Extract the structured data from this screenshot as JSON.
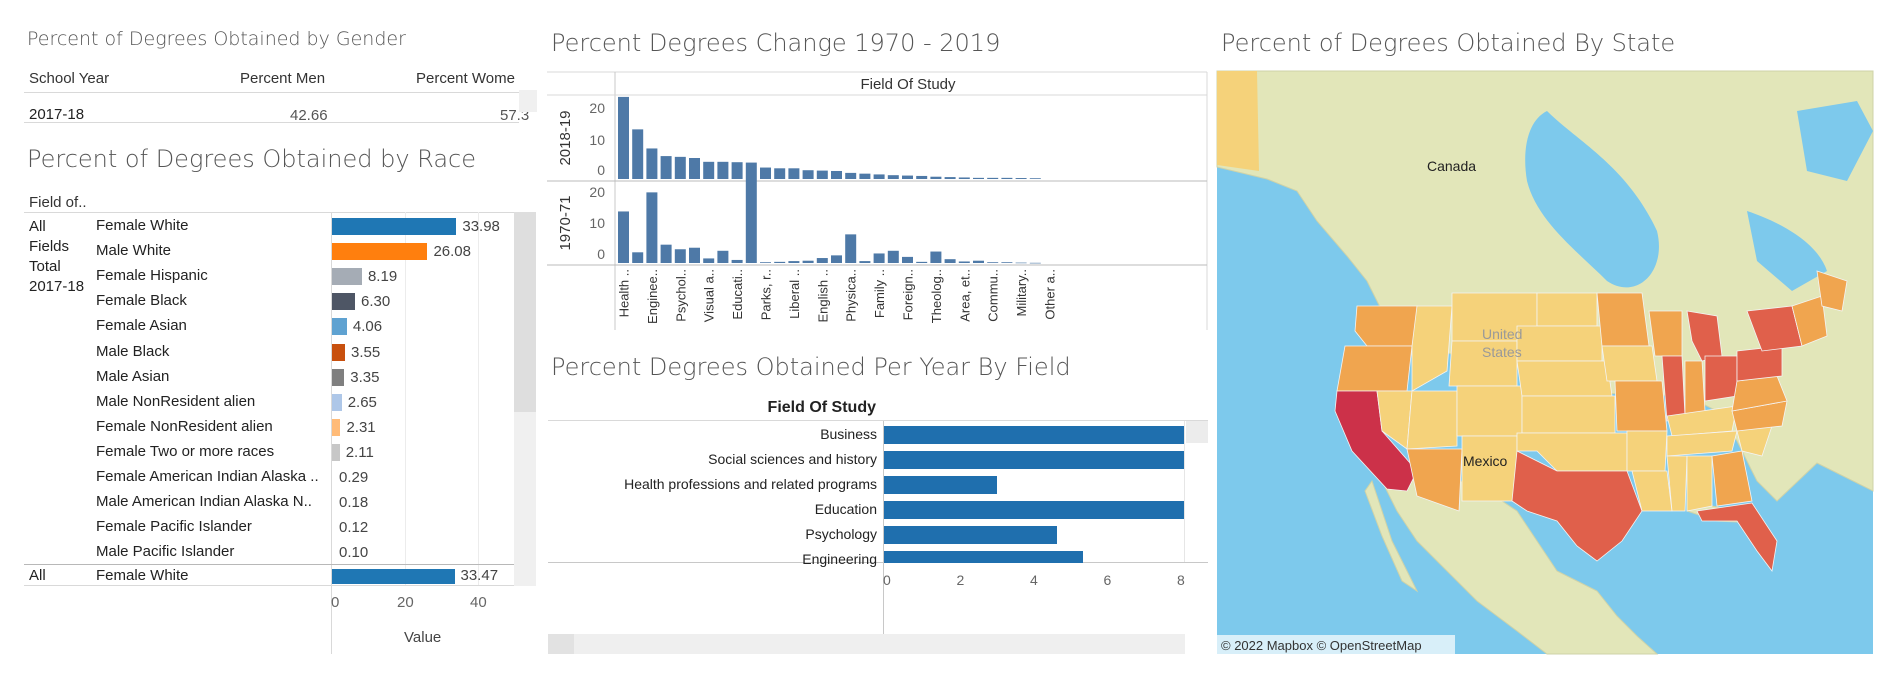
{
  "gender": {
    "title": "Percent of Degrees Obtained by Gender",
    "col_year": "School Year",
    "col_men": "Percent Men",
    "col_women": "Percent Wome",
    "row": {
      "year": "2017-18",
      "men": "42.66",
      "women": "57.3"
    }
  },
  "race": {
    "title": "Percent of Degrees Obtained by Race",
    "field_header": "Field of..",
    "group_label": [
      "All",
      "Fields",
      "Total",
      "2017-18"
    ],
    "next_group": "All",
    "axis_ticks": [
      "0",
      "20",
      "40"
    ],
    "axis_label": "Value",
    "chart_data": {
      "type": "bar",
      "orientation": "horizontal",
      "categories": [
        "Female White",
        "Male White",
        "Female Hispanic",
        "Female Black",
        "Female Asian",
        "Male Black",
        "Male Asian",
        "Male NonResident alien",
        "Female NonResident alien",
        "Female Two or more races",
        "Female American Indian Alaska ..",
        "Male American Indian Alaska N..",
        "Female Pacific Islander",
        "Male Pacific Islander"
      ],
      "values": [
        33.98,
        26.08,
        8.19,
        6.3,
        4.06,
        3.55,
        3.35,
        2.65,
        2.31,
        2.11,
        0.29,
        0.18,
        0.12,
        0.1
      ],
      "labels": [
        "33.98",
        "26.08",
        "8.19",
        "6.30",
        "4.06",
        "3.55",
        "3.35",
        "2.65",
        "2.31",
        "2.11",
        "0.29",
        "0.18",
        "0.12",
        "0.10"
      ],
      "colors": [
        "#1f77b4",
        "#ff7f0e",
        "#a5acb5",
        "#4e5665",
        "#5fa2d1",
        "#c8500e",
        "#7f7f7f",
        "#aec7e8",
        "#ffbb78",
        "#c7c7c7",
        "#ffffff",
        "#ffffff",
        "#ffffff",
        "#ffffff"
      ],
      "xlim": [
        0,
        50
      ],
      "next_row": {
        "category": "Female White",
        "value": 33.47,
        "label": "33.47"
      }
    }
  },
  "change": {
    "title": "Percent Degrees Change 1970 - 2019",
    "header": "Field Of Study",
    "row_labels": [
      "2018-19",
      "1970-71"
    ],
    "y_ticks": [
      "20",
      "10",
      "0"
    ],
    "x_labels": [
      "Health ..",
      "Enginee..",
      "Psychol..",
      "Visual a..",
      "Educati..",
      "Parks, r..",
      "Liberal ..",
      "English ..",
      "Physica..",
      "Family ..",
      "Foreign..",
      "Theolog..",
      "Area, et..",
      "Commu..",
      "Military..",
      "Other a.."
    ],
    "chart_data": {
      "type": "bar",
      "ylim": [
        0,
        22
      ],
      "series": [
        {
          "name": "2018-19",
          "values": [
            21.5,
            13,
            8,
            6,
            5.8,
            5.5,
            4.5,
            4.5,
            4.4,
            4.3,
            3,
            2.8,
            2.8,
            2.3,
            2.2,
            2.1,
            1.6,
            1.4,
            1.2,
            1,
            0.9,
            0.8,
            0.6,
            0.5,
            0.4,
            0.3,
            0.3,
            0.3,
            0.25,
            0.2
          ]
        },
        {
          "name": "1970-71",
          "values": [
            13.5,
            2.8,
            18.5,
            4.8,
            3.6,
            4,
            1.2,
            3.2,
            0.8,
            22,
            0.2,
            0.3,
            0.5,
            0.6,
            1.3,
            2,
            7.5,
            0.5,
            2.5,
            3.2,
            1.6,
            0.3,
            3,
            1,
            0.4,
            0.6,
            0.2,
            0.2,
            0.1,
            0.05
          ]
        }
      ]
    }
  },
  "perfield": {
    "title": "Percent Degrees Obtained Per Year By Field",
    "header": "Field Of Study",
    "x_ticks": [
      "0",
      "2",
      "4",
      "6",
      "8"
    ],
    "chart_data": {
      "type": "bar",
      "orientation": "horizontal",
      "categories": [
        "Business",
        "Social sciences and history",
        "Health professions and related programs",
        "Education",
        "Psychology",
        "Engineering"
      ],
      "values": [
        8,
        8,
        3,
        8,
        4.6,
        5.3
      ],
      "xlim": [
        0,
        8
      ],
      "color": "#1f6fae"
    }
  },
  "map": {
    "title": "Percent of Degrees Obtained By State",
    "labels": {
      "canada": "Canada",
      "mexico": "Mexico",
      "us": "United States"
    },
    "attribution": "© 2022 Mapbox © OpenStreetMap",
    "colors": {
      "water": "#7dc9ec",
      "land": "#e2e6b9",
      "low": "#f5d27a",
      "mid": "#f0a54f",
      "high": "#e0604b",
      "top": "#cc3149"
    }
  }
}
